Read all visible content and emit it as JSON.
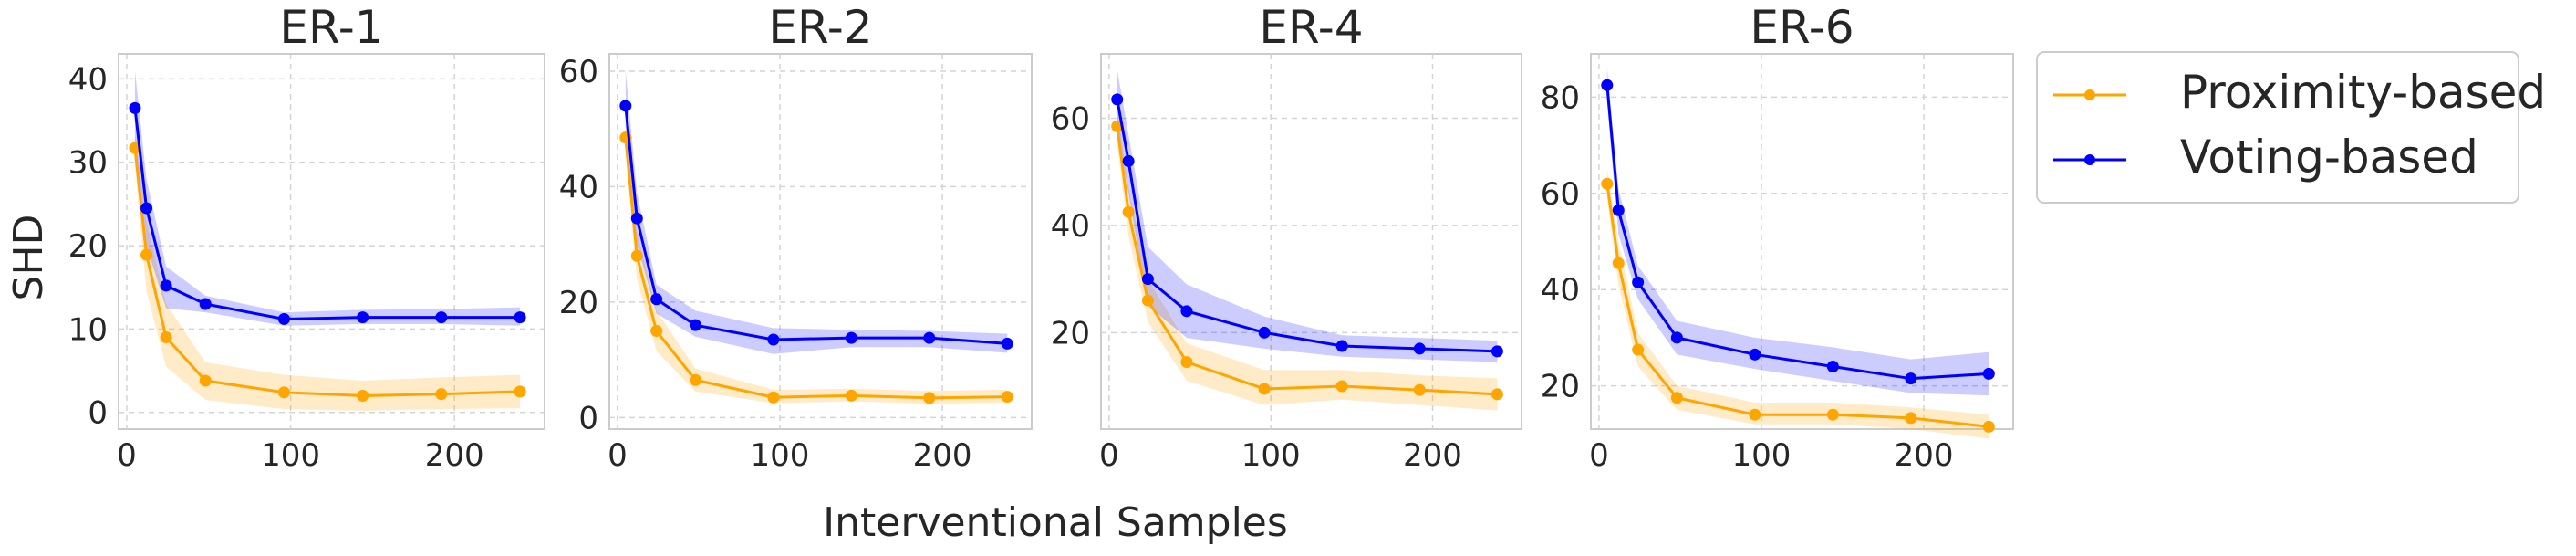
{
  "figure": {
    "ylabel": "SHD",
    "xlabel": "Interventional Samples"
  },
  "legend": {
    "placement": "right",
    "entries": [
      "Proximity-based",
      "Voting-based"
    ]
  },
  "colors": {
    "proximity": "#ffa500",
    "voting": "#0000ff",
    "grid": "#d4d4d4",
    "axes": "#cccccc",
    "text": "#262626"
  },
  "chart_data": [
    {
      "type": "line",
      "title": "ER-1",
      "xlim": [
        -5,
        255
      ],
      "ylim": [
        -2,
        43
      ],
      "xticks": [
        0,
        100,
        200
      ],
      "yticks": [
        0,
        10,
        20,
        30,
        40
      ],
      "x": [
        5,
        12,
        24,
        48,
        96,
        144,
        192,
        240
      ],
      "series": [
        {
          "name": "Proximity-based",
          "values": [
            31.7,
            18.9,
            9.0,
            3.8,
            2.4,
            2.0,
            2.2,
            2.5
          ],
          "lower": [
            29.5,
            14.5,
            5.5,
            1.5,
            0.4,
            0.2,
            0.4,
            0.5
          ],
          "upper": [
            33.5,
            23.0,
            13.0,
            6.0,
            4.5,
            3.8,
            4.2,
            4.5
          ]
        },
        {
          "name": "Voting-based",
          "values": [
            36.5,
            24.5,
            15.2,
            13.0,
            11.2,
            11.4,
            11.4,
            11.4
          ],
          "lower": [
            32.0,
            20.0,
            12.5,
            12.0,
            10.4,
            10.6,
            10.6,
            10.4
          ],
          "upper": [
            41.0,
            28.0,
            17.5,
            14.0,
            12.0,
            12.3,
            12.4,
            12.6
          ]
        }
      ]
    },
    {
      "type": "line",
      "title": "ER-2",
      "xlim": [
        -5,
        255
      ],
      "ylim": [
        -2,
        63
      ],
      "xticks": [
        0,
        100,
        200
      ],
      "yticks": [
        0,
        20,
        40,
        60
      ],
      "x": [
        5,
        12,
        24,
        48,
        96,
        144,
        192,
        240
      ],
      "series": [
        {
          "name": "Proximity-based",
          "values": [
            48.5,
            28.0,
            15.0,
            6.5,
            3.5,
            3.8,
            3.4,
            3.6
          ],
          "lower": [
            46.0,
            24.0,
            11.5,
            4.5,
            2.5,
            2.8,
            2.4,
            2.6
          ],
          "upper": [
            51.0,
            32.0,
            18.5,
            8.5,
            4.8,
            5.0,
            4.6,
            4.8
          ]
        },
        {
          "name": "Voting-based",
          "values": [
            54.0,
            34.5,
            20.5,
            16.0,
            13.5,
            13.8,
            13.8,
            12.8
          ],
          "lower": [
            48.0,
            30.0,
            18.0,
            14.0,
            11.0,
            12.2,
            12.2,
            11.2
          ],
          "upper": [
            60.0,
            39.0,
            23.0,
            18.5,
            15.5,
            15.2,
            15.0,
            14.5
          ]
        }
      ]
    },
    {
      "type": "line",
      "title": "ER-4",
      "xlim": [
        -5,
        255
      ],
      "ylim": [
        2,
        72
      ],
      "xticks": [
        0,
        100,
        200
      ],
      "yticks": [
        20,
        40,
        60
      ],
      "x": [
        5,
        12,
        24,
        48,
        96,
        144,
        192,
        240
      ],
      "series": [
        {
          "name": "Proximity-based",
          "values": [
            58.5,
            42.5,
            26.0,
            14.5,
            9.5,
            10.0,
            9.3,
            8.5
          ],
          "lower": [
            55.0,
            38.0,
            22.0,
            11.0,
            6.5,
            7.5,
            6.5,
            5.5
          ],
          "upper": [
            62.0,
            47.0,
            30.0,
            18.0,
            13.0,
            13.0,
            12.0,
            11.5
          ]
        },
        {
          "name": "Voting-based",
          "values": [
            63.5,
            52.0,
            30.0,
            24.0,
            20.0,
            17.5,
            17.0,
            16.5
          ],
          "lower": [
            58.0,
            46.0,
            25.0,
            19.0,
            17.0,
            15.5,
            15.0,
            14.5
          ],
          "upper": [
            69.0,
            57.0,
            36.0,
            29.0,
            23.0,
            19.5,
            19.0,
            18.5
          ]
        }
      ]
    },
    {
      "type": "line",
      "title": "ER-6",
      "xlim": [
        -5,
        255
      ],
      "ylim": [
        11,
        89
      ],
      "xticks": [
        0,
        100,
        200
      ],
      "yticks": [
        20,
        40,
        60,
        80
      ],
      "x": [
        5,
        12,
        24,
        48,
        96,
        144,
        192,
        240
      ],
      "series": [
        {
          "name": "Proximity-based",
          "values": [
            62.0,
            45.5,
            27.5,
            17.5,
            14.0,
            14.0,
            13.3,
            11.5
          ],
          "lower": [
            59.0,
            41.0,
            24.0,
            15.0,
            12.0,
            12.0,
            11.0,
            9.0
          ],
          "upper": [
            65.0,
            50.0,
            31.0,
            20.0,
            16.5,
            16.5,
            15.5,
            14.0
          ]
        },
        {
          "name": "Voting-based",
          "values": [
            82.5,
            56.5,
            41.5,
            30.0,
            26.5,
            24.0,
            21.5,
            22.5
          ],
          "lower": [
            79.0,
            51.5,
            38.0,
            26.5,
            23.5,
            21.0,
            18.5,
            18.0
          ],
          "upper": [
            86.0,
            61.0,
            45.0,
            33.5,
            30.0,
            28.0,
            25.5,
            27.0
          ]
        }
      ]
    }
  ]
}
